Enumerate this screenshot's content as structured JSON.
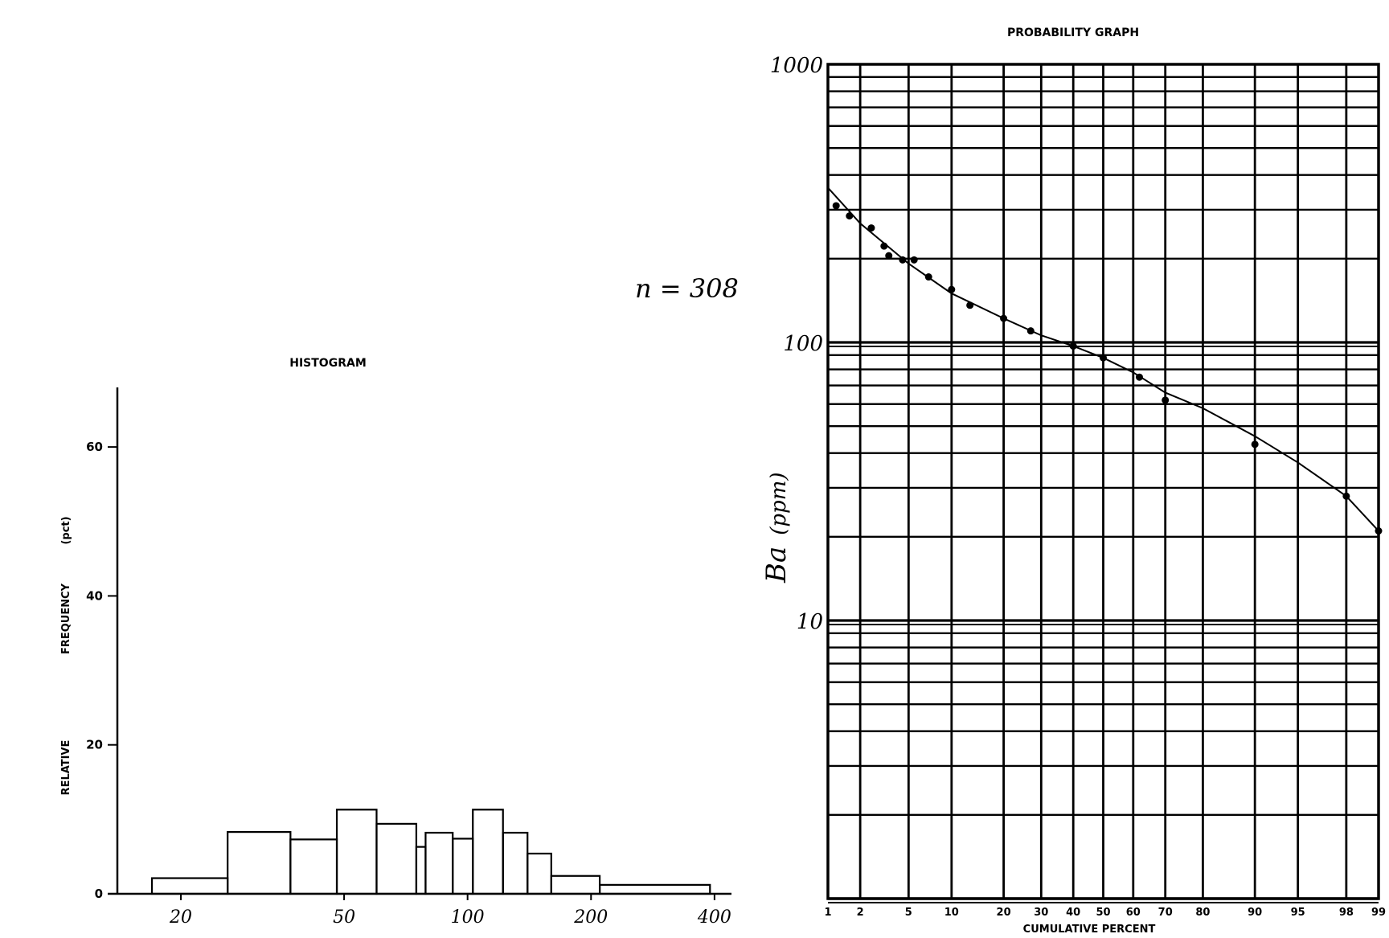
{
  "sample_label": "n = 308",
  "chart_data": [
    {
      "type": "bar",
      "title": "HISTOGRAM",
      "ylabel_parts": [
        "RELATIVE",
        "FREQUENCY",
        "(pct)"
      ],
      "xscale": "log",
      "xlim": [
        14,
        440
      ],
      "ylim": [
        0,
        68
      ],
      "xticks": [
        20,
        50,
        100,
        200,
        400
      ],
      "xtick_labels": [
        "20",
        "50",
        "100",
        "200",
        "400"
      ],
      "yticks": [
        0,
        20,
        40,
        60
      ],
      "ytick_labels": [
        "0",
        "20",
        "40",
        "60"
      ],
      "bins": [
        {
          "x0": 17.0,
          "x1": 26.0,
          "value": 2.1
        },
        {
          "x0": 26.0,
          "x1": 37.0,
          "value": 8.3
        },
        {
          "x0": 37.0,
          "x1": 48.0,
          "value": 7.3
        },
        {
          "x0": 48.0,
          "x1": 60.0,
          "value": 11.3
        },
        {
          "x0": 60.0,
          "x1": 75.0,
          "value": 9.4
        },
        {
          "x0": 75.0,
          "x1": 79.0,
          "value": 6.3
        },
        {
          "x0": 79.0,
          "x1": 92.0,
          "value": 8.2
        },
        {
          "x0": 92.0,
          "x1": 103.0,
          "value": 7.4
        },
        {
          "x0": 103.0,
          "x1": 122.0,
          "value": 11.3
        },
        {
          "x0": 122.0,
          "x1": 140.0,
          "value": 8.2
        },
        {
          "x0": 140.0,
          "x1": 160.0,
          "value": 5.4
        },
        {
          "x0": 160.0,
          "x1": 210.0,
          "value": 2.4
        },
        {
          "x0": 210.0,
          "x1": 390.0,
          "value": 1.2
        }
      ]
    },
    {
      "type": "line",
      "title": "PROBABILITY GRAPH",
      "xlabel": "CUMULATIVE PERCENT",
      "ylabel_element": "Ba",
      "ylabel_unit": "(ppm)",
      "xscale": "probability",
      "yscale": "log",
      "xlim": [
        1,
        99
      ],
      "ylim": [
        1,
        1000
      ],
      "xticks": [
        1,
        2,
        5,
        10,
        20,
        30,
        40,
        50,
        60,
        70,
        80,
        90,
        95,
        98,
        99
      ],
      "xtick_labels": [
        "1",
        "2",
        "5",
        "10",
        "20",
        "30",
        "40",
        "50",
        "60",
        "70",
        "80",
        "90",
        "95",
        "98",
        "99"
      ],
      "ytick_labels": [
        {
          "value": 1000,
          "label": "1000"
        },
        {
          "value": 100,
          "label": "100"
        },
        {
          "value": 10,
          "label": "10"
        }
      ],
      "grid": true,
      "points": [
        {
          "x": 1.2,
          "y": 310
        },
        {
          "x": 1.6,
          "y": 285
        },
        {
          "x": 2.5,
          "y": 258
        },
        {
          "x": 3.2,
          "y": 222
        },
        {
          "x": 3.5,
          "y": 205
        },
        {
          "x": 4.5,
          "y": 198
        },
        {
          "x": 5.5,
          "y": 198
        },
        {
          "x": 7.0,
          "y": 172
        },
        {
          "x": 10.0,
          "y": 155
        },
        {
          "x": 13.0,
          "y": 136
        },
        {
          "x": 20.0,
          "y": 122
        },
        {
          "x": 27.0,
          "y": 110
        },
        {
          "x": 40.0,
          "y": 97
        },
        {
          "x": 50.0,
          "y": 88
        },
        {
          "x": 62.0,
          "y": 75
        },
        {
          "x": 70.0,
          "y": 62
        },
        {
          "x": 90.0,
          "y": 43
        },
        {
          "x": 98.0,
          "y": 28
        },
        {
          "x": 99.0,
          "y": 21
        }
      ],
      "fit_line": [
        {
          "x": 1.0,
          "y": 360
        },
        {
          "x": 2.0,
          "y": 268
        },
        {
          "x": 5.0,
          "y": 192
        },
        {
          "x": 10.0,
          "y": 150
        },
        {
          "x": 20.0,
          "y": 122
        },
        {
          "x": 30.0,
          "y": 106
        },
        {
          "x": 40.0,
          "y": 97
        },
        {
          "x": 50.0,
          "y": 88
        },
        {
          "x": 60.0,
          "y": 78
        },
        {
          "x": 70.0,
          "y": 66
        },
        {
          "x": 80.0,
          "y": 58
        },
        {
          "x": 90.0,
          "y": 46
        },
        {
          "x": 95.0,
          "y": 37
        },
        {
          "x": 98.0,
          "y": 28
        },
        {
          "x": 99.0,
          "y": 21
        }
      ]
    }
  ]
}
